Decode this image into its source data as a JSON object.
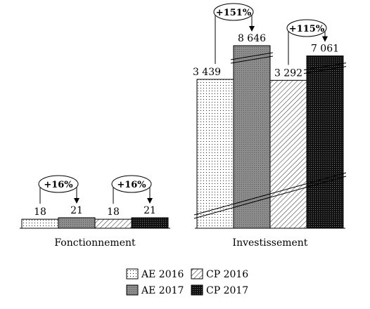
{
  "chart_data": {
    "type": "bar",
    "categories": [
      "Fonctionnement",
      "Investissement"
    ],
    "series": [
      {
        "name": "AE 2016",
        "values": [
          18,
          3439
        ],
        "labels": [
          "18",
          "3 439"
        ],
        "pattern": "dots"
      },
      {
        "name": "AE 2017",
        "values": [
          21,
          8646
        ],
        "labels": [
          "21",
          "8 646"
        ],
        "pattern": "grey-dots"
      },
      {
        "name": "CP 2016",
        "values": [
          18,
          3292
        ],
        "labels": [
          "18",
          "3 292"
        ],
        "pattern": "diagonal-lines"
      },
      {
        "name": "CP 2017",
        "values": [
          21,
          7061
        ],
        "labels": [
          "21",
          "7 061"
        ],
        "pattern": "dark-dots"
      }
    ],
    "annotations": [
      {
        "text": "+16%",
        "category": "Fonctionnement",
        "from": "AE 2016",
        "to": "AE 2017"
      },
      {
        "text": "+16%",
        "category": "Fonctionnement",
        "from": "CP 2016",
        "to": "CP 2017"
      },
      {
        "text": "+151%",
        "category": "Investissement",
        "from": "AE 2016",
        "to": "AE 2017"
      },
      {
        "text": "+115%",
        "category": "Investissement",
        "from": "CP 2016",
        "to": "CP 2017"
      }
    ],
    "axis_break": true,
    "legend_position": "bottom-center",
    "grid": false,
    "colors": {
      "ae2016": "#ffffff",
      "ae2017": "#8c8c8c",
      "cp2016": "#ffffff",
      "cp2017": "#1a1a1a",
      "stroke": "#000000"
    }
  }
}
